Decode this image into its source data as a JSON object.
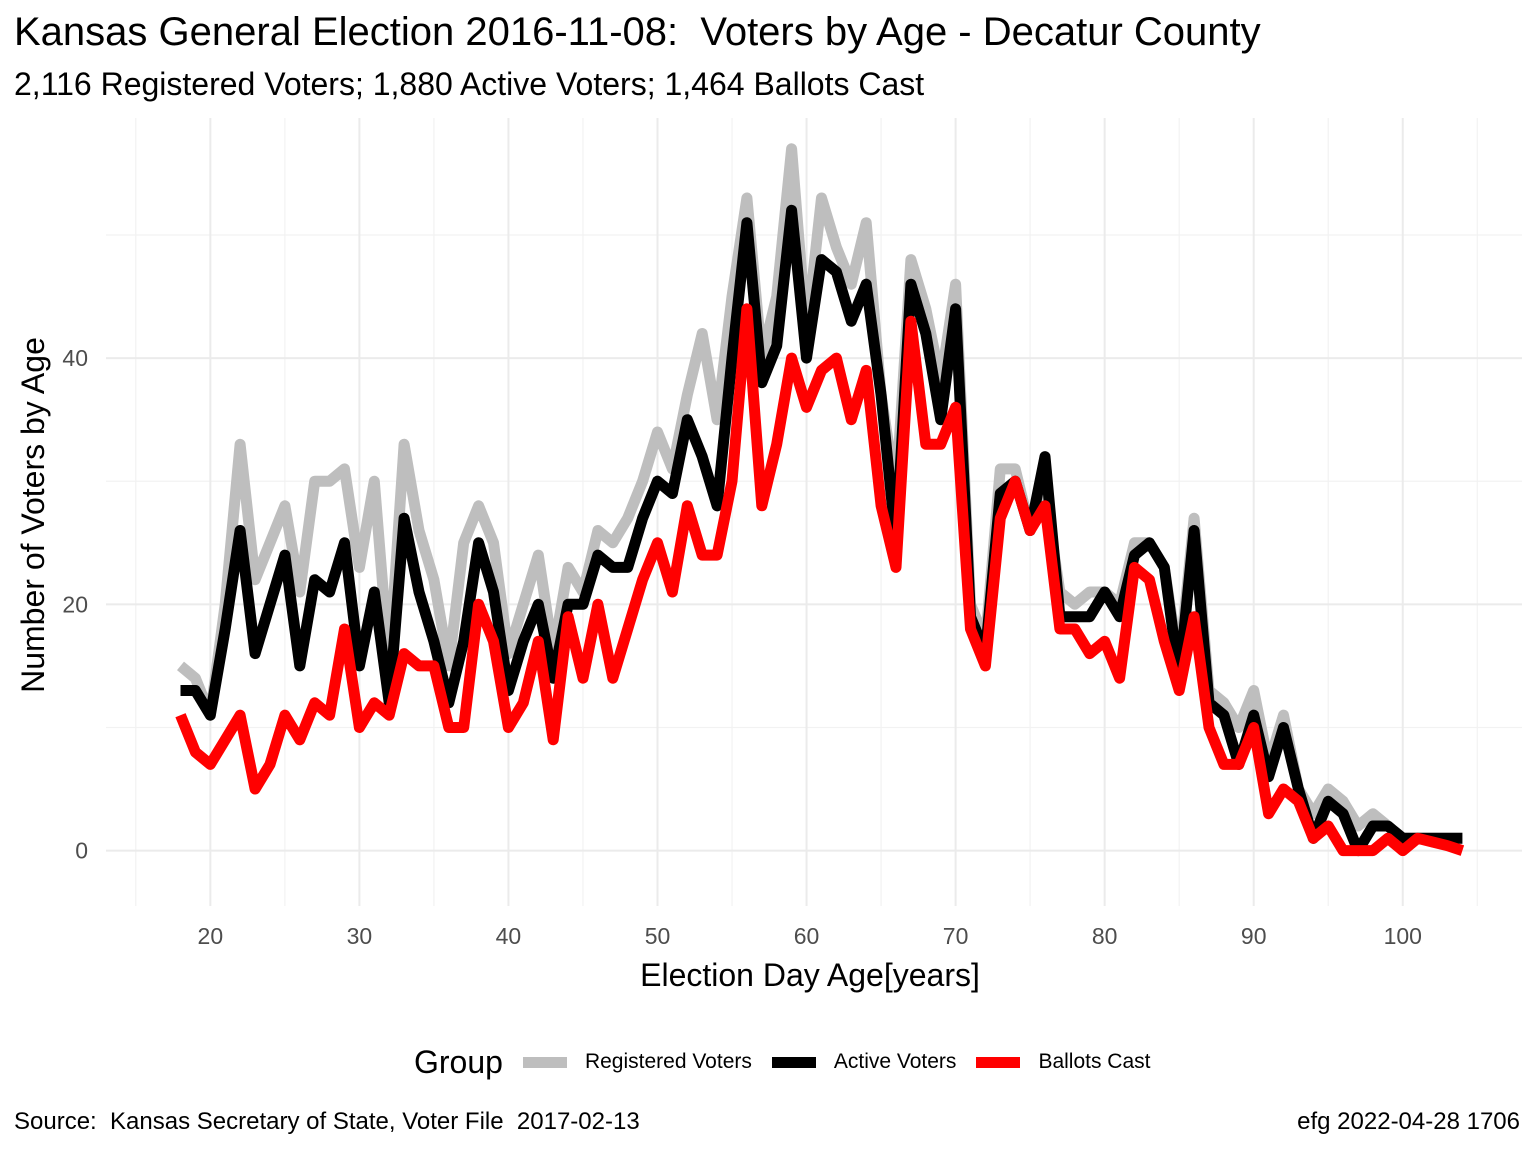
{
  "chart_data": {
    "type": "line",
    "title": "Kansas General Election 2016-11-08:  Voters by Age - Decatur County",
    "subtitle": "2,116 Registered Voters; 1,880 Active Voters; 1,464 Ballots Cast",
    "xlabel": "Election Day Age[years]",
    "ylabel": "Number of Voters by Age",
    "xlim": [
      13,
      108
    ],
    "ylim": [
      -4.5,
      59.5
    ],
    "x_ticks": [
      20,
      30,
      40,
      50,
      60,
      70,
      80,
      90,
      100
    ],
    "y_ticks": [
      0,
      20,
      40
    ],
    "grid": true,
    "legend_position": "bottom",
    "legend_title": "Group",
    "x": [
      18,
      19,
      20,
      21,
      22,
      23,
      24,
      25,
      26,
      27,
      28,
      29,
      30,
      31,
      32,
      33,
      34,
      35,
      36,
      37,
      38,
      39,
      40,
      41,
      42,
      43,
      44,
      45,
      46,
      47,
      48,
      49,
      50,
      51,
      52,
      53,
      54,
      55,
      56,
      57,
      58,
      59,
      60,
      61,
      62,
      63,
      64,
      65,
      66,
      67,
      68,
      69,
      70,
      71,
      72,
      73,
      74,
      75,
      76,
      77,
      78,
      79,
      80,
      81,
      82,
      83,
      84,
      85,
      86,
      87,
      88,
      89,
      90,
      91,
      92,
      93,
      94,
      95,
      96,
      97,
      98,
      99,
      100,
      101,
      102,
      103,
      104
    ],
    "series": [
      {
        "name": "Registered Voters",
        "color": "#bebebe",
        "values": [
          15,
          14,
          11,
          20,
          33,
          22,
          25,
          28,
          21,
          30,
          30,
          31,
          23,
          30,
          15,
          33,
          26,
          22,
          15,
          25,
          28,
          25,
          16,
          20,
          24,
          16,
          23,
          21,
          26,
          25,
          27,
          30,
          34,
          31,
          37,
          42,
          35,
          45,
          53,
          40,
          45,
          57,
          42,
          53,
          49,
          46,
          51,
          37,
          29,
          48,
          44,
          38,
          46,
          20,
          17,
          31,
          31,
          26,
          29,
          21,
          20,
          21,
          21,
          20,
          25,
          25,
          23,
          15,
          27,
          13,
          12,
          10,
          13,
          7,
          11,
          5,
          3,
          5,
          4,
          2,
          3,
          2,
          1,
          1,
          1,
          1,
          1
        ],
        "line_width": 11
      },
      {
        "name": "Active Voters",
        "color": "#000000",
        "values": [
          13,
          13,
          11,
          18,
          26,
          16,
          20,
          24,
          15,
          22,
          21,
          25,
          15,
          21,
          12,
          27,
          21,
          17,
          12,
          17,
          25,
          21,
          13,
          17,
          20,
          14,
          20,
          20,
          24,
          23,
          23,
          27,
          30,
          29,
          35,
          32,
          28,
          40,
          51,
          38,
          41,
          52,
          40,
          48,
          47,
          43,
          46,
          37,
          25,
          46,
          42,
          35,
          44,
          19,
          16,
          29,
          30,
          26,
          32,
          19,
          19,
          19,
          21,
          19,
          24,
          25,
          23,
          14,
          26,
          12,
          11,
          7,
          11,
          6,
          10,
          5,
          1,
          4,
          3,
          0,
          2,
          2,
          1,
          1,
          1,
          1,
          1
        ],
        "line_width": 11
      },
      {
        "name": "Ballots Cast",
        "color": "#ff0000",
        "values": [
          11,
          8,
          7,
          9,
          11,
          5,
          7,
          11,
          9,
          12,
          11,
          18,
          10,
          12,
          11,
          16,
          15,
          15,
          10,
          10,
          20,
          17,
          10,
          12,
          17,
          9,
          19,
          14,
          20,
          14,
          18,
          22,
          25,
          21,
          28,
          24,
          24,
          30,
          44,
          28,
          33,
          40,
          36,
          39,
          40,
          35,
          39,
          28,
          23,
          43,
          33,
          33,
          36,
          18,
          15,
          27,
          30,
          26,
          28,
          18,
          18,
          16,
          17,
          14,
          23,
          22,
          17,
          13,
          19,
          10,
          7,
          7,
          10,
          3,
          5,
          4,
          1,
          2,
          0,
          0,
          0,
          1,
          0,
          1,
          0.7,
          0.4,
          0
        ],
        "line_width": 11
      }
    ]
  },
  "caption": {
    "source": "Source:  Kansas Secretary of State, Voter File  2017-02-13",
    "credit": "efg 2022-04-28 1706"
  }
}
